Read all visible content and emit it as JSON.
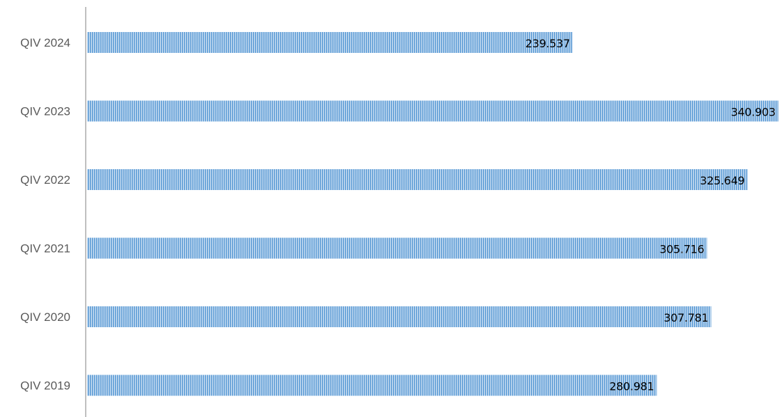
{
  "chart_data": {
    "type": "bar",
    "orientation": "horizontal",
    "categories": [
      "QIV 2024",
      "QIV 2023",
      "QIV 2022",
      "QIV 2021",
      "QIV 2020",
      "QIV 2019"
    ],
    "values": [
      239537,
      340903,
      325649,
      305716,
      307781,
      280981
    ],
    "data_labels": [
      "239.537",
      "340.903",
      "325.649",
      "305.716",
      "307.781",
      "280.981"
    ],
    "xlim": [
      0,
      340903
    ],
    "bar_color": "#5b9bd5",
    "bar_pattern": "vertical-stripes",
    "axis_color": "#bfbfbf",
    "grid": false,
    "legend": "none",
    "title": "",
    "xlabel": "",
    "ylabel": ""
  }
}
